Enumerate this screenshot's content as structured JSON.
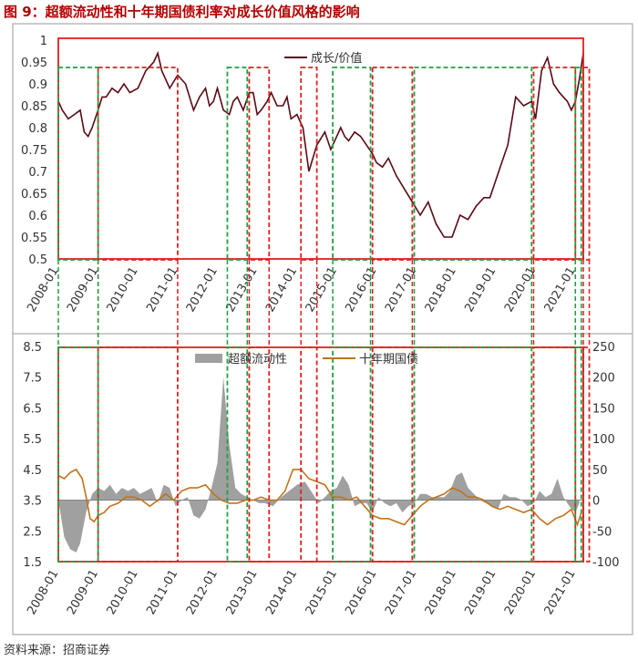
{
  "title": "图 9：超额流动性和十年期国债利率对成长价值风格的影响",
  "source": "资料来源：招商证券",
  "chart_data": [
    {
      "type": "line",
      "title": "",
      "ylim": [
        0.5,
        1.0
      ],
      "yticks": [
        "1",
        "0.95",
        "0.9",
        "0.85",
        "0.8",
        "0.75",
        "0.7",
        "0.65",
        "0.6",
        "0.55",
        "0.5"
      ],
      "xticks": [
        "2008-01",
        "2009-01",
        "2010-01",
        "2011-01",
        "2012-01",
        "2013-01",
        "2014-01",
        "2015-01",
        "2016-01",
        "2017-01",
        "2018-01",
        "2019-01",
        "2020-01",
        "2021-01"
      ],
      "legend": "top-right",
      "series": [
        {
          "name": "成长/价值",
          "color": "#5a0a14",
          "x": [
            2008.0,
            2008.1,
            2008.25,
            2008.4,
            2008.55,
            2008.65,
            2008.75,
            2008.85,
            2009.0,
            2009.1,
            2009.2,
            2009.35,
            2009.5,
            2009.65,
            2009.8,
            2010.0,
            2010.2,
            2010.4,
            2010.5,
            2010.6,
            2010.8,
            2011.0,
            2011.2,
            2011.4,
            2011.55,
            2011.7,
            2011.8,
            2011.9,
            2012.0,
            2012.15,
            2012.3,
            2012.4,
            2012.5,
            2012.65,
            2012.8,
            2012.9,
            2013.0,
            2013.1,
            2013.25,
            2013.35,
            2013.5,
            2013.65,
            2013.75,
            2013.85,
            2014.0,
            2014.15,
            2014.3,
            2014.5,
            2014.7,
            2014.85,
            2015.0,
            2015.1,
            2015.2,
            2015.3,
            2015.45,
            2015.6,
            2015.75,
            2015.9,
            2016.0,
            2016.15,
            2016.3,
            2016.5,
            2016.7,
            2016.9,
            2017.1,
            2017.3,
            2017.5,
            2017.7,
            2017.9,
            2018.1,
            2018.3,
            2018.5,
            2018.7,
            2018.85,
            2019.0,
            2019.15,
            2019.3,
            2019.5,
            2019.7,
            2019.9,
            2020.0,
            2020.15,
            2020.3,
            2020.45,
            2020.6,
            2020.7,
            2020.8,
            2020.9,
            2021.0,
            2021.1,
            2021.2
          ],
          "y": [
            0.86,
            0.84,
            0.82,
            0.83,
            0.84,
            0.79,
            0.78,
            0.8,
            0.84,
            0.87,
            0.87,
            0.89,
            0.88,
            0.9,
            0.88,
            0.89,
            0.93,
            0.95,
            0.97,
            0.93,
            0.89,
            0.92,
            0.9,
            0.84,
            0.87,
            0.89,
            0.85,
            0.86,
            0.89,
            0.84,
            0.83,
            0.86,
            0.87,
            0.84,
            0.88,
            0.88,
            0.83,
            0.84,
            0.86,
            0.88,
            0.85,
            0.85,
            0.87,
            0.82,
            0.83,
            0.8,
            0.7,
            0.76,
            0.79,
            0.75,
            0.78,
            0.8,
            0.78,
            0.77,
            0.79,
            0.78,
            0.76,
            0.74,
            0.72,
            0.71,
            0.73,
            0.69,
            0.66,
            0.63,
            0.6,
            0.63,
            0.58,
            0.55,
            0.55,
            0.6,
            0.59,
            0.62,
            0.64,
            0.64,
            0.68,
            0.72,
            0.76,
            0.87,
            0.85,
            0.86,
            0.82,
            0.93,
            0.96,
            0.9,
            0.88,
            0.87,
            0.86,
            0.84,
            0.86,
            0.91,
            0.97
          ]
        }
      ]
    },
    {
      "type": "area",
      "title": "",
      "ylim_left": [
        1.5,
        8.5
      ],
      "ylim_right": [
        -100,
        250
      ],
      "yticks_left": [
        "8.5",
        "7.5",
        "6.5",
        "5.5",
        "4.5",
        "3.5",
        "2.5",
        "1.5"
      ],
      "yticks_right": [
        "250",
        "200",
        "150",
        "100",
        "50",
        "0",
        "-50",
        "-100"
      ],
      "xticks": [
        "2008-01",
        "2009-01",
        "2010-01",
        "2011-01",
        "2012-01",
        "2013-01",
        "2014-01",
        "2015-01",
        "2016-01",
        "2017-01",
        "2018-01",
        "2019-01",
        "2020-01",
        "2021-01"
      ],
      "legend": "top",
      "series": [
        {
          "name": "超额流动性",
          "axis": "right",
          "color": "#a0a0a0",
          "x": [
            2008.0,
            2008.15,
            2008.3,
            2008.45,
            2008.55,
            2008.7,
            2008.85,
            2009.0,
            2009.15,
            2009.3,
            2009.45,
            2009.6,
            2009.75,
            2009.9,
            2010.05,
            2010.2,
            2010.35,
            2010.5,
            2010.65,
            2010.8,
            2010.95,
            2011.1,
            2011.25,
            2011.4,
            2011.55,
            2011.7,
            2011.85,
            2012.0,
            2012.15,
            2012.3,
            2012.45,
            2012.6,
            2012.75,
            2012.9,
            2013.05,
            2013.2,
            2013.4,
            2013.6,
            2013.8,
            2014.0,
            2014.2,
            2014.4,
            2014.55,
            2014.7,
            2014.85,
            2015.0,
            2015.15,
            2015.3,
            2015.45,
            2015.6,
            2015.75,
            2015.9,
            2016.05,
            2016.2,
            2016.35,
            2016.5,
            2016.65,
            2016.8,
            2016.95,
            2017.1,
            2017.25,
            2017.4,
            2017.55,
            2017.7,
            2017.85,
            2018.0,
            2018.15,
            2018.3,
            2018.45,
            2018.6,
            2018.75,
            2018.9,
            2019.05,
            2019.2,
            2019.35,
            2019.5,
            2019.65,
            2019.8,
            2019.95,
            2020.1,
            2020.25,
            2020.4,
            2020.55,
            2020.7,
            2020.85,
            2021.0,
            2021.1
          ],
          "y": [
            0,
            -60,
            -80,
            -85,
            -70,
            -20,
            10,
            20,
            15,
            25,
            10,
            20,
            15,
            20,
            10,
            15,
            20,
            -5,
            25,
            20,
            -10,
            0,
            5,
            -25,
            -30,
            -15,
            20,
            60,
            200,
            90,
            20,
            10,
            5,
            0,
            -5,
            -5,
            -10,
            5,
            15,
            25,
            30,
            10,
            -5,
            5,
            15,
            20,
            40,
            25,
            -10,
            -5,
            -5,
            -20,
            5,
            -5,
            -10,
            -5,
            -20,
            -10,
            -5,
            10,
            10,
            5,
            5,
            5,
            15,
            40,
            45,
            20,
            10,
            0,
            -5,
            -10,
            -15,
            10,
            5,
            5,
            0,
            -10,
            -5,
            15,
            5,
            10,
            35,
            5,
            -10,
            -20,
            -5
          ]
        },
        {
          "name": "十年期国债",
          "axis": "left",
          "color": "#c0731a",
          "x": [
            2008.0,
            2008.15,
            2008.3,
            2008.45,
            2008.6,
            2008.7,
            2008.8,
            2008.9,
            2009.0,
            2009.15,
            2009.3,
            2009.5,
            2009.7,
            2009.9,
            2010.1,
            2010.3,
            2010.5,
            2010.7,
            2010.9,
            2011.1,
            2011.3,
            2011.5,
            2011.7,
            2011.9,
            2012.1,
            2012.3,
            2012.5,
            2012.7,
            2012.9,
            2013.1,
            2013.3,
            2013.5,
            2013.7,
            2013.9,
            2014.1,
            2014.3,
            2014.5,
            2014.7,
            2014.9,
            2015.1,
            2015.3,
            2015.5,
            2015.7,
            2015.9,
            2016.1,
            2016.3,
            2016.5,
            2016.7,
            2016.9,
            2017.1,
            2017.3,
            2017.5,
            2017.7,
            2017.9,
            2018.1,
            2018.3,
            2018.5,
            2018.7,
            2018.9,
            2019.1,
            2019.3,
            2019.5,
            2019.7,
            2019.9,
            2020.1,
            2020.3,
            2020.5,
            2020.7,
            2020.9,
            2021.05,
            2021.15
          ],
          "y": [
            4.3,
            4.2,
            4.4,
            4.5,
            4.2,
            3.6,
            2.9,
            2.8,
            3.0,
            3.1,
            3.3,
            3.4,
            3.6,
            3.6,
            3.5,
            3.3,
            3.5,
            3.7,
            3.5,
            3.8,
            3.9,
            3.9,
            4.0,
            3.7,
            3.5,
            3.4,
            3.4,
            3.5,
            3.5,
            3.6,
            3.5,
            3.5,
            3.8,
            4.5,
            4.5,
            4.2,
            4.1,
            4.0,
            3.6,
            3.6,
            3.5,
            3.6,
            3.3,
            3.0,
            2.9,
            2.9,
            2.8,
            2.7,
            3.0,
            3.3,
            3.5,
            3.6,
            3.7,
            3.9,
            3.8,
            3.6,
            3.6,
            3.5,
            3.3,
            3.2,
            3.3,
            3.2,
            3.1,
            3.2,
            2.9,
            2.7,
            2.9,
            3.0,
            3.2,
            2.7,
            3.1
          ]
        }
      ]
    }
  ],
  "regions": [
    {
      "color": "#e02020",
      "x0": 2008.0,
      "x1": 2021.2
    },
    {
      "color": "#e02020",
      "x0": 2009.0,
      "x1": 2011.0
    },
    {
      "color": "#e02020",
      "x0": 2012.8,
      "x1": 2013.3
    },
    {
      "color": "#e02020",
      "x0": 2014.1,
      "x1": 2014.5
    },
    {
      "color": "#e02020",
      "x0": 2015.9,
      "x1": 2016.9
    },
    {
      "color": "#e02020",
      "x0": 2019.95,
      "x1": 2021.0
    },
    {
      "color": "#e02020",
      "x0": 2021.2,
      "x1": 2021.35
    },
    {
      "color": "#20a040",
      "x0": 2008.0,
      "x1": 2009.0
    },
    {
      "color": "#20a040",
      "x0": 2012.25,
      "x1": 2012.75
    },
    {
      "color": "#20a040",
      "x0": 2014.9,
      "x1": 2015.85
    },
    {
      "color": "#20a040",
      "x0": 2016.95,
      "x1": 2019.9
    },
    {
      "color": "#20a040",
      "x0": 2021.0,
      "x1": 2021.15
    }
  ]
}
